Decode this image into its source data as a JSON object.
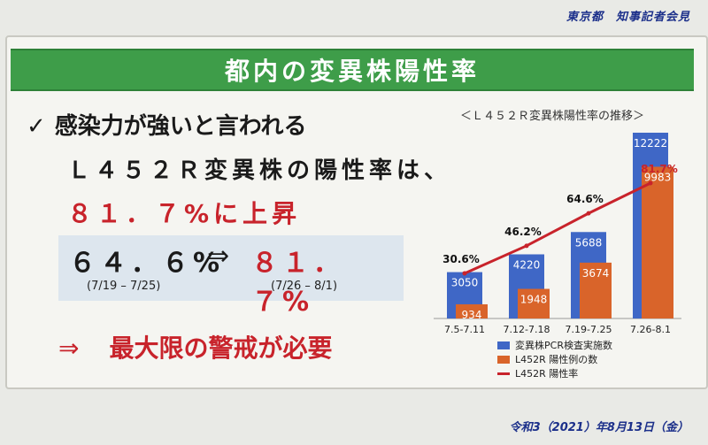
{
  "header": {
    "right_label": "東京都　知事記者会見"
  },
  "title": "都内の変異株陽性率",
  "bullet": {
    "check": "✓",
    "line1": "感染力が強いと言われる",
    "line2": "Ｌ４５２Ｒ変異株の陽性率は、",
    "line3": "８１．７%に上昇"
  },
  "comparison": {
    "from": "６４．６%",
    "arrow": "⇒",
    "to": "８１．７%",
    "from_period": "(7/19 – 7/25)",
    "to_period": "(7/26 – 8/1)"
  },
  "conclusion": {
    "arrow": "⇒",
    "text": "最大限の警戒が必要"
  },
  "footer": "令和3（2021）年8月13日（金）",
  "chart_data": {
    "type": "bar",
    "title": "＜Ｌ４５２Ｒ変異株陽性率の推移＞",
    "categories": [
      "7.5-7.11",
      "7.12-7.18",
      "7.19-7.25",
      "7.26-8.1"
    ],
    "series": [
      {
        "name": "変異株PCR検査実施数",
        "type": "bar",
        "color": "#3f67c6",
        "values": [
          3050,
          4220,
          5688,
          12222
        ]
      },
      {
        "name": "L452R 陽性例の数",
        "type": "bar",
        "color": "#d9642a",
        "values": [
          934,
          1948,
          3674,
          9983
        ]
      },
      {
        "name": "L452R 陽性率",
        "type": "line",
        "color": "#c8232b",
        "values": [
          30.6,
          46.2,
          64.6,
          81.7
        ],
        "labels": [
          "30.6%",
          "46.2%",
          "64.6%",
          "81.7%"
        ]
      }
    ],
    "ylim": [
      0,
      12222
    ],
    "grid": false,
    "legend_placement": "bottom"
  }
}
